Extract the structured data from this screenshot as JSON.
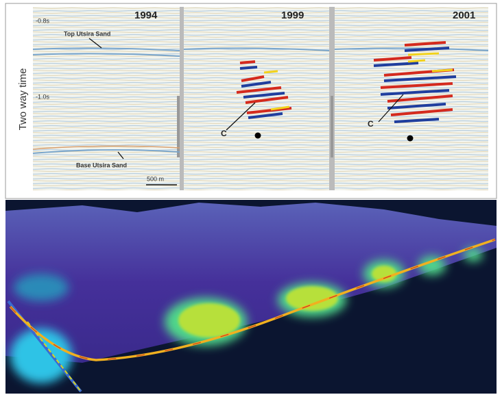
{
  "figure": {
    "y_axis_label": "Two way time",
    "time_labels": [
      "-0.8s",
      "-1.0s"
    ],
    "panels": [
      {
        "year": "1994",
        "annotations": [
          "Top Utsira Sand",
          "Base Utsira Sand"
        ],
        "scale_bar": "500 m"
      },
      {
        "year": "1999",
        "annotations": [
          "C"
        ]
      },
      {
        "year": "2001",
        "annotations": [
          "C"
        ]
      }
    ]
  }
}
